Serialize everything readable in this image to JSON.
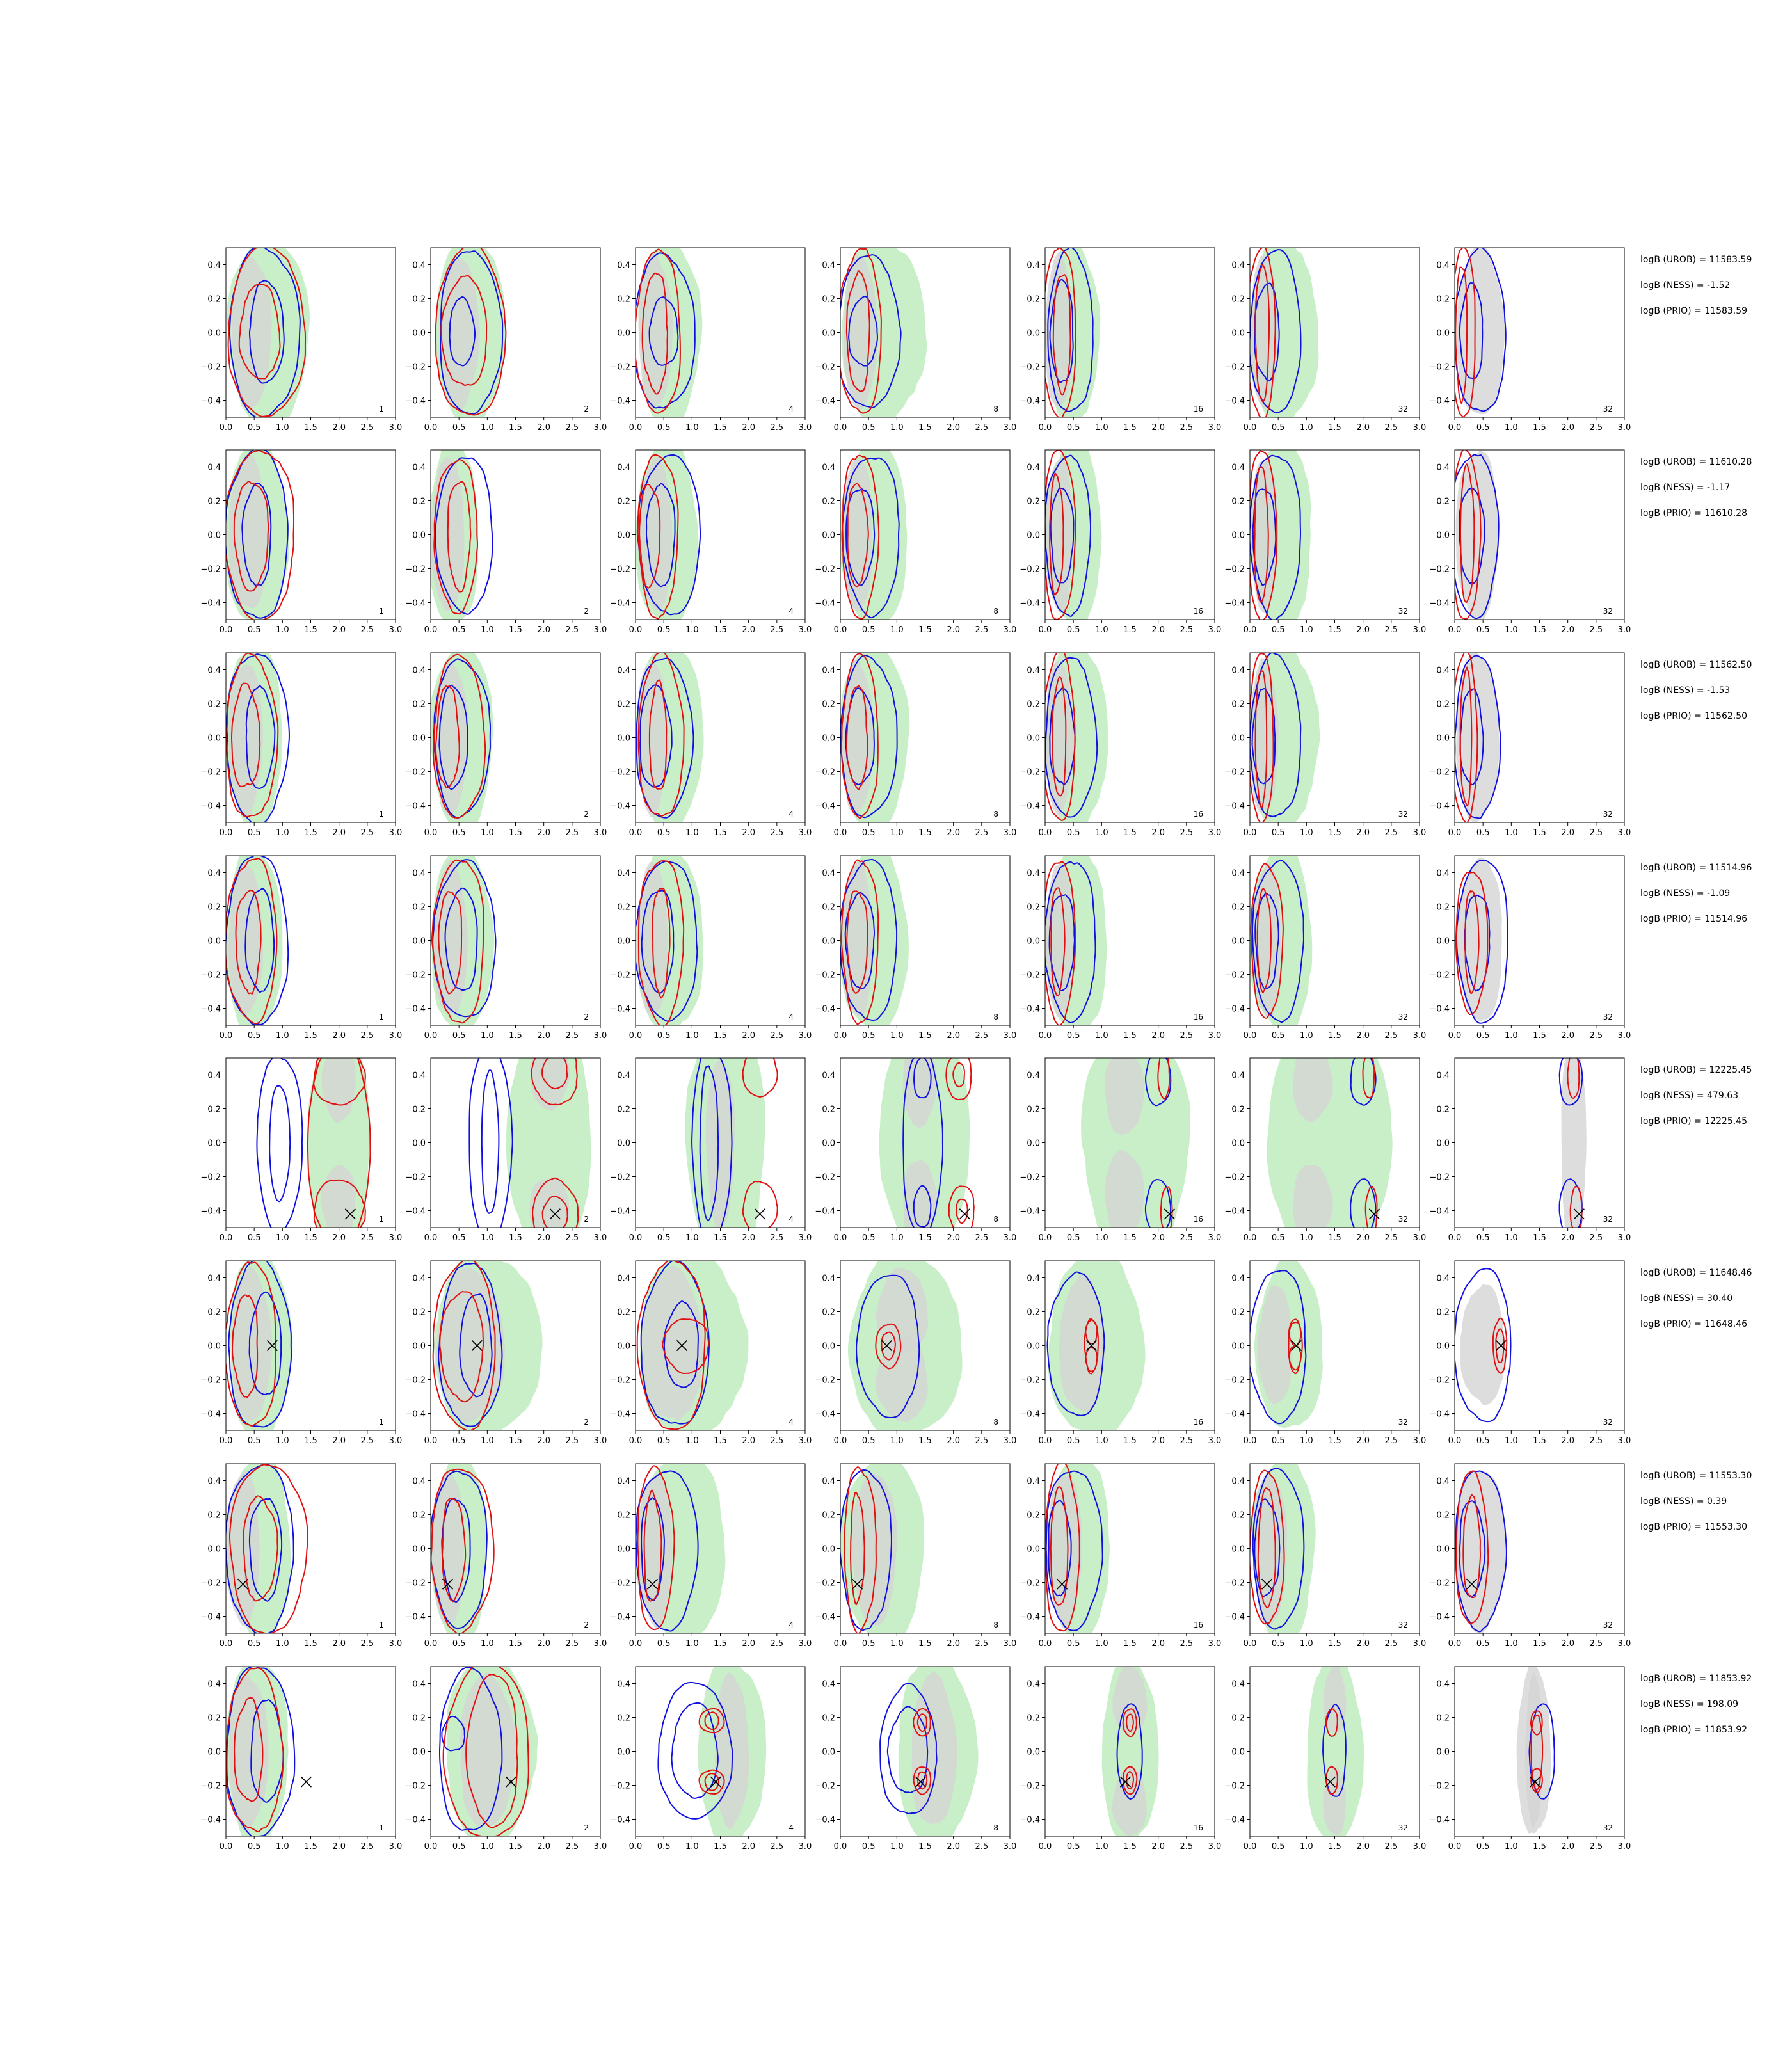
{
  "chart_data": {
    "type": "contour",
    "layout": {
      "rows": 8,
      "columns": 7
    },
    "xlim": [
      0,
      3
    ],
    "ylim": [
      -0.5,
      0.5
    ],
    "x_ticks": [
      0.0,
      0.5,
      1.0,
      1.5,
      2.0,
      2.5,
      3.0
    ],
    "y_ticks": [
      -0.4,
      -0.2,
      0.0,
      0.2,
      0.4
    ],
    "x_tick_labels": [
      "0.0",
      "0.5",
      "1.0",
      "1.5",
      "2.0",
      "2.5",
      "3.0"
    ],
    "y_tick_labels": [
      "−0.4",
      "−0.2",
      "0.0",
      "0.2",
      "0.4"
    ],
    "column_labels": [
      "1",
      "2",
      "4",
      "8",
      "16",
      "32",
      "32"
    ],
    "colors": {
      "blue": "#1010e0",
      "red": "#e01010",
      "green_fill": "#c8efc8",
      "grey_fill": "#d4d4d4",
      "marker": "#000000"
    },
    "rows": [
      {
        "marker": null,
        "stats": [
          "logB (UROB) = 11583.59",
          "logB (NESS) = -1.52",
          "logB (PRIO) = 11583.59"
        ]
      },
      {
        "marker": null,
        "stats": [
          "logB (UROB) = 11610.28",
          "logB (NESS) = -1.17",
          "logB (PRIO) = 11610.28"
        ]
      },
      {
        "marker": null,
        "stats": [
          "logB (UROB) = 11562.50",
          "logB (NESS) = -1.53",
          "logB (PRIO) = 11562.50"
        ]
      },
      {
        "marker": null,
        "stats": [
          "logB (UROB) = 11514.96",
          "logB (NESS) = -1.09",
          "logB (PRIO) = 11514.96"
        ]
      },
      {
        "marker": [
          2.2,
          -0.42
        ],
        "stats": [
          "logB (UROB) = 12225.45",
          "logB (NESS) = 479.63",
          "logB (PRIO) = 12225.45"
        ]
      },
      {
        "marker": [
          0.82,
          0.0
        ],
        "stats": [
          "logB (UROB) = 11648.46",
          "logB (NESS) = 30.40",
          "logB (PRIO) = 11648.46"
        ]
      },
      {
        "marker": [
          0.3,
          -0.21
        ],
        "stats": [
          "logB (UROB) = 11553.30",
          "logB (NESS) = 0.39",
          "logB (PRIO) = 11553.30"
        ]
      },
      {
        "marker": [
          1.42,
          -0.18
        ],
        "stats": [
          "logB (UROB) = 11853.92",
          "logB (NESS) = 198.09",
          "logB (PRIO) = 11853.92"
        ]
      }
    ]
  }
}
